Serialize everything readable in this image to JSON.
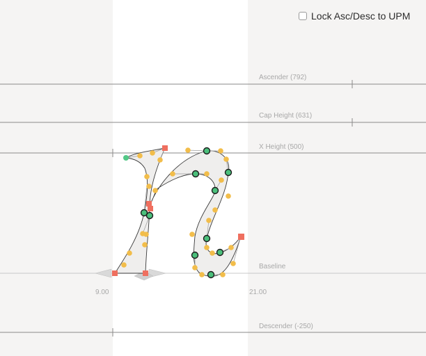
{
  "lock_option": {
    "label": "Lock Asc/Desc to UPM",
    "checked": false
  },
  "metrics": {
    "ascender": "Ascender (792)",
    "cap_height": "Cap Height (631)",
    "x_height": "X Height (500)",
    "baseline": "Baseline",
    "descender": "Descender (-250)"
  },
  "sidebearings": {
    "left": "9.00",
    "right": "21.00"
  },
  "colors": {
    "background": "#f5f4f3",
    "glyph_area": "#ffffff",
    "metric_line": "#8a8a8a",
    "metric_label": "#a8a8a8",
    "on_curve_point": "#4bbf7b",
    "off_curve_handle": "#f2bd4a",
    "corner_point": "#ef6f5f",
    "outline_fill": "#efeeed",
    "outline_stroke": "#3a3a3a"
  }
}
